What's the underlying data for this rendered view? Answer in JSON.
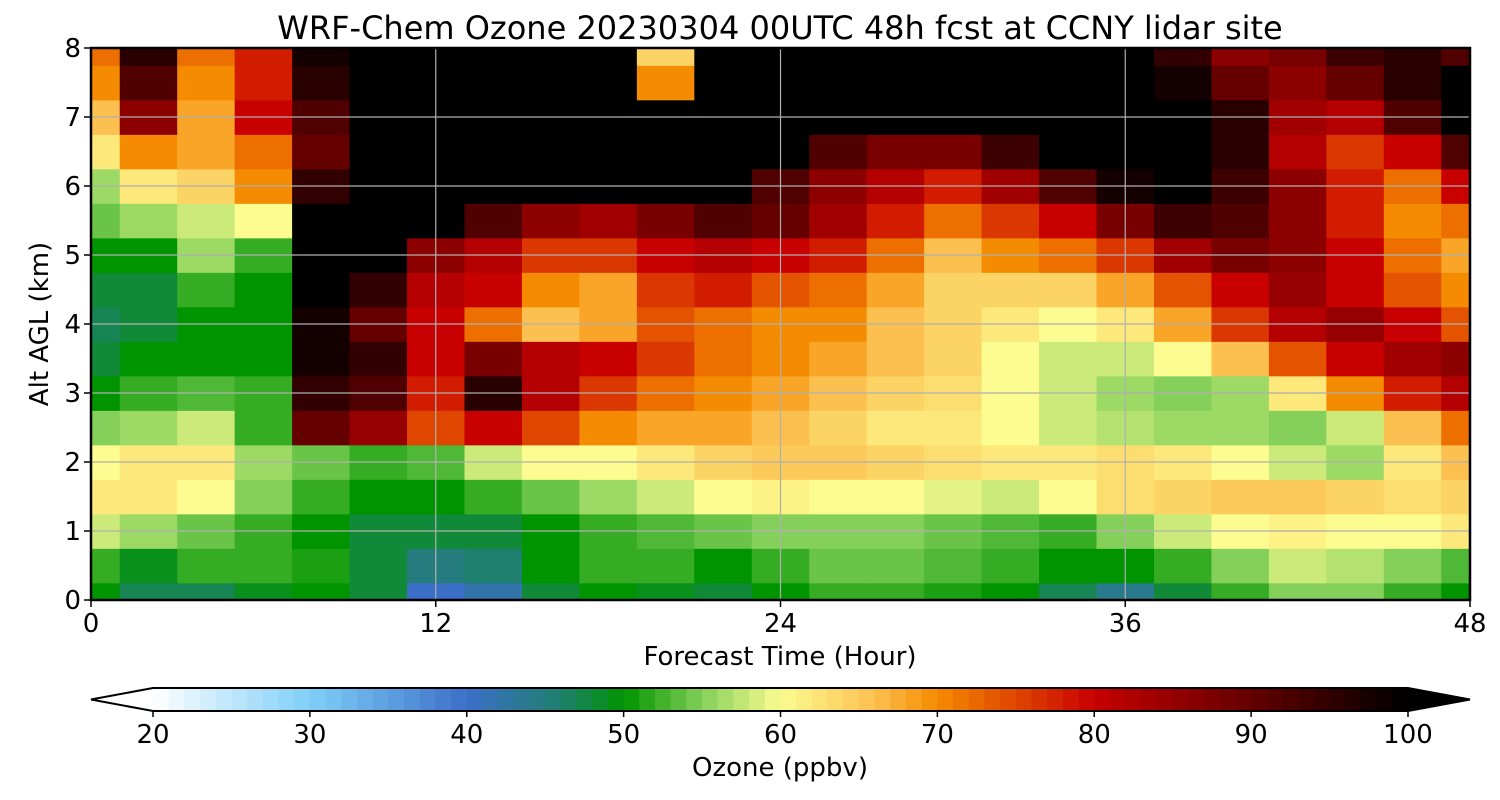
{
  "chart_data": {
    "type": "heatmap",
    "title": "WRF-Chem Ozone  20230304 00UTC 48h fcst at CCNY lidar site",
    "xlabel": "Forecast Time (Hour)",
    "ylabel": "Alt AGL (km)",
    "xlim": [
      0,
      48
    ],
    "ylim": [
      0,
      8
    ],
    "x_ticks": [
      "0",
      "12",
      "24",
      "36",
      "48"
    ],
    "x_tick_values": [
      0,
      12,
      24,
      36,
      48
    ],
    "y_ticks": [
      "0",
      "1",
      "2",
      "3",
      "4",
      "5",
      "6",
      "7",
      "8"
    ],
    "y_tick_values": [
      0,
      1,
      2,
      3,
      4,
      5,
      6,
      7,
      8
    ],
    "grid": true,
    "colorbar": {
      "label": "Ozone  (ppbv)",
      "min": 20,
      "max": 100,
      "extend": "both",
      "tick_labels": [
        "20",
        "30",
        "40",
        "50",
        "60",
        "70",
        "80",
        "90",
        "100"
      ],
      "tick_values": [
        20,
        30,
        40,
        50,
        60,
        70,
        80,
        90,
        100
      ],
      "color_stops": [
        {
          "value": 20,
          "color": "#ffffff"
        },
        {
          "value": 30,
          "color": "#7fcff8"
        },
        {
          "value": 40,
          "color": "#3c6fc8"
        },
        {
          "value": 46,
          "color": "#1f7f6f"
        },
        {
          "value": 50,
          "color": "#009400"
        },
        {
          "value": 55,
          "color": "#84d05a"
        },
        {
          "value": 60,
          "color": "#fcfc90"
        },
        {
          "value": 66,
          "color": "#fcc050"
        },
        {
          "value": 70,
          "color": "#f58b00"
        },
        {
          "value": 80,
          "color": "#c80000"
        },
        {
          "value": 90,
          "color": "#640000"
        },
        {
          "value": 100,
          "color": "#000000"
        }
      ]
    },
    "x_hours": [
      0,
      2,
      4,
      6,
      8,
      10,
      12,
      14,
      16,
      18,
      20,
      22,
      24,
      26,
      28,
      30,
      32,
      34,
      36,
      38,
      40,
      42,
      44,
      46,
      48
    ],
    "y_km": [
      0,
      0.5,
      1,
      1.5,
      2,
      2.5,
      3,
      3.5,
      4,
      4.5,
      5,
      5.5,
      6,
      6.5,
      7,
      7.5,
      8
    ],
    "ozone_ppbv": [
      [
        50,
        47,
        47,
        49,
        50,
        48,
        40,
        42,
        48,
        50,
        49,
        48,
        50,
        52,
        52,
        51,
        50,
        47,
        44,
        48,
        52,
        55,
        55,
        52,
        50
      ],
      [
        52,
        49,
        52,
        52,
        51,
        48,
        45,
        46,
        50,
        52,
        52,
        50,
        52,
        54,
        54,
        53,
        52,
        50,
        50,
        52,
        55,
        58,
        57,
        55,
        53
      ],
      [
        58,
        56,
        54,
        52,
        50,
        48,
        48,
        48,
        50,
        52,
        53,
        54,
        55,
        55,
        55,
        54,
        53,
        52,
        55,
        58,
        60,
        61,
        60,
        60,
        62
      ],
      [
        62,
        62,
        60,
        55,
        52,
        50,
        50,
        52,
        54,
        56,
        58,
        60,
        61,
        60,
        60,
        59,
        58,
        60,
        63,
        64,
        65,
        65,
        64,
        63,
        64
      ],
      [
        60,
        62,
        62,
        56,
        54,
        52,
        53,
        58,
        60,
        60,
        62,
        64,
        65,
        65,
        64,
        63,
        62,
        62,
        63,
        62,
        60,
        58,
        56,
        62,
        66
      ],
      [
        55,
        56,
        58,
        52,
        90,
        85,
        75,
        80,
        75,
        70,
        68,
        68,
        66,
        64,
        62,
        62,
        60,
        58,
        57,
        56,
        56,
        55,
        58,
        66,
        72
      ],
      [
        50,
        52,
        53,
        52,
        95,
        92,
        78,
        96,
        82,
        76,
        72,
        70,
        68,
        66,
        64,
        63,
        60,
        58,
        56,
        55,
        56,
        62,
        70,
        78,
        82
      ],
      [
        48,
        50,
        50,
        50,
        98,
        95,
        80,
        88,
        82,
        80,
        76,
        72,
        70,
        68,
        66,
        64,
        60,
        58,
        58,
        60,
        66,
        74,
        80,
        84,
        86
      ],
      [
        47,
        48,
        50,
        50,
        98,
        90,
        80,
        72,
        66,
        68,
        74,
        72,
        70,
        70,
        66,
        64,
        62,
        60,
        62,
        68,
        76,
        82,
        85,
        80,
        74
      ],
      [
        48,
        48,
        52,
        50,
        100,
        95,
        82,
        80,
        70,
        68,
        76,
        78,
        74,
        72,
        68,
        64,
        64,
        64,
        68,
        74,
        80,
        85,
        80,
        74,
        70
      ],
      [
        50,
        50,
        56,
        52,
        100,
        100,
        86,
        82,
        76,
        76,
        80,
        82,
        80,
        78,
        72,
        66,
        70,
        72,
        76,
        84,
        88,
        86,
        80,
        72,
        68
      ],
      [
        54,
        56,
        58,
        60,
        100,
        100,
        100,
        92,
        86,
        84,
        88,
        92,
        90,
        84,
        78,
        72,
        76,
        80,
        88,
        94,
        92,
        86,
        78,
        70,
        72
      ],
      [
        56,
        62,
        64,
        70,
        95,
        100,
        100,
        100,
        100,
        100,
        100,
        100,
        92,
        86,
        82,
        78,
        84,
        92,
        98,
        100,
        94,
        86,
        78,
        72,
        80
      ],
      [
        62,
        70,
        68,
        72,
        90,
        100,
        100,
        100,
        100,
        100,
        100,
        100,
        100,
        92,
        88,
        88,
        94,
        100,
        100,
        100,
        96,
        82,
        76,
        80,
        92
      ],
      [
        66,
        86,
        68,
        80,
        92,
        100,
        100,
        100,
        100,
        100,
        100,
        100,
        100,
        100,
        100,
        100,
        100,
        100,
        100,
        100,
        96,
        84,
        82,
        92,
        100
      ],
      [
        70,
        92,
        70,
        78,
        96,
        100,
        100,
        100,
        100,
        100,
        70,
        100,
        100,
        100,
        100,
        100,
        100,
        100,
        100,
        98,
        90,
        86,
        90,
        96,
        100
      ],
      [
        72,
        96,
        72,
        78,
        98,
        100,
        100,
        100,
        100,
        100,
        64,
        100,
        100,
        100,
        100,
        100,
        100,
        100,
        100,
        95,
        86,
        88,
        94,
        96,
        92
      ]
    ]
  }
}
